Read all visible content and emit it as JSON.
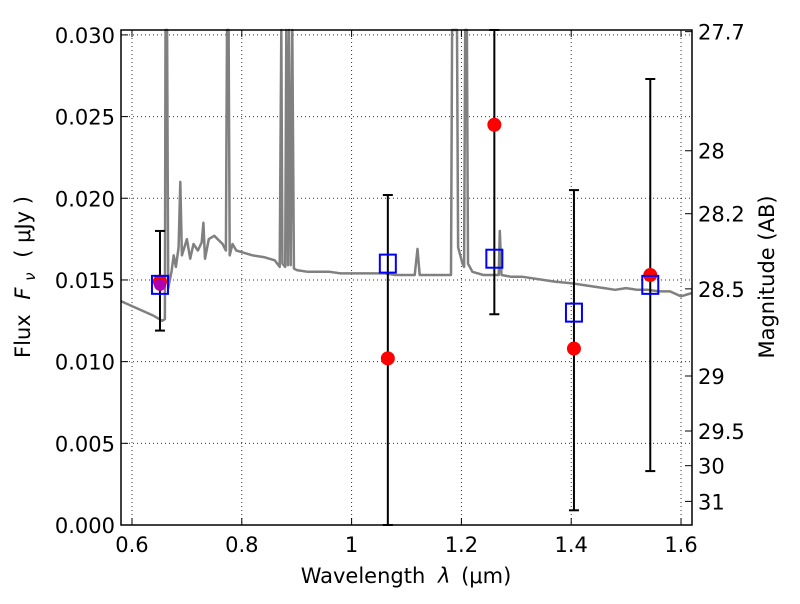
{
  "chart_data": {
    "type": "scatter",
    "xlabel_text": "Wavelength",
    "xlabel_symbol": "λ",
    "xlabel_unit": "(μm)",
    "ylabel_text": "Flux",
    "ylabel_symbol": "F",
    "ylabel_subscript": "ν",
    "ylabel_unit": "( μJy )",
    "y2label": "Magnitude (AB)",
    "xlim": [
      0.58,
      1.62
    ],
    "ylim": [
      0.0,
      0.0303
    ],
    "grid": true,
    "x_ticks": [
      {
        "value": 0.6,
        "label": "0.6"
      },
      {
        "value": 0.8,
        "label": "0.8"
      },
      {
        "value": 1.0,
        "label": "1"
      },
      {
        "value": 1.2,
        "label": "1.2"
      },
      {
        "value": 1.4,
        "label": "1.4"
      },
      {
        "value": 1.6,
        "label": "1.6"
      }
    ],
    "y_ticks": [
      {
        "value": 0.0,
        "label": "0.000"
      },
      {
        "value": 0.005,
        "label": "0.005"
      },
      {
        "value": 0.01,
        "label": "0.010"
      },
      {
        "value": 0.015,
        "label": "0.015"
      },
      {
        "value": 0.02,
        "label": "0.020"
      },
      {
        "value": 0.025,
        "label": "0.025"
      },
      {
        "value": 0.03,
        "label": "0.030"
      }
    ],
    "y2_ticks": [
      {
        "mag": 27.7,
        "label": "27.7"
      },
      {
        "mag": 28.0,
        "label": "28"
      },
      {
        "mag": 28.2,
        "label": "28.2"
      },
      {
        "mag": 28.5,
        "label": "28.5"
      },
      {
        "mag": 29.0,
        "label": "29"
      },
      {
        "mag": 29.5,
        "label": "29.5"
      },
      {
        "mag": 30.0,
        "label": "30"
      },
      {
        "mag": 31.0,
        "label": "31"
      }
    ],
    "series": [
      {
        "kind": "observed",
        "style": "red-circle",
        "color": "#ff0000",
        "points": [
          {
            "x": 0.651,
            "y": 0.0149,
            "yerr_low": 0.0119,
            "yerr_high": 0.018
          },
          {
            "x": 1.066,
            "y": 0.0102,
            "yerr_low": 0.0,
            "yerr_high": 0.0202
          },
          {
            "x": 1.26,
            "y": 0.0245,
            "yerr_low": 0.0129,
            "yerr_high": 0.0304
          },
          {
            "x": 1.405,
            "y": 0.0108,
            "yerr_low": 0.0009,
            "yerr_high": 0.0205
          },
          {
            "x": 1.544,
            "y": 0.0153,
            "yerr_low": 0.0033,
            "yerr_high": 0.0273
          }
        ]
      },
      {
        "kind": "model-photometry",
        "style": "blue-open-square",
        "color": "#0000ff",
        "points": [
          {
            "x": 0.651,
            "y": 0.0147
          },
          {
            "x": 1.066,
            "y": 0.016
          },
          {
            "x": 1.26,
            "y": 0.0163
          },
          {
            "x": 1.405,
            "y": 0.013
          },
          {
            "x": 1.544,
            "y": 0.0147
          }
        ]
      },
      {
        "kind": "model-spectrum",
        "style": "gray-line",
        "color": "#808080",
        "points": [
          [
            0.58,
            0.0137
          ],
          [
            0.6,
            0.0134
          ],
          [
            0.62,
            0.0131
          ],
          [
            0.64,
            0.0128
          ],
          [
            0.655,
            0.0125
          ],
          [
            0.66,
            0.0126
          ],
          [
            0.661,
            0.031
          ],
          [
            0.664,
            0.031
          ],
          [
            0.666,
            0.0145
          ],
          [
            0.672,
            0.0155
          ],
          [
            0.676,
            0.0165
          ],
          [
            0.68,
            0.0158
          ],
          [
            0.685,
            0.017
          ],
          [
            0.688,
            0.021
          ],
          [
            0.691,
            0.0165
          ],
          [
            0.7,
            0.0175
          ],
          [
            0.706,
            0.0163
          ],
          [
            0.712,
            0.0172
          ],
          [
            0.72,
            0.0168
          ],
          [
            0.727,
            0.0173
          ],
          [
            0.73,
            0.0185
          ],
          [
            0.733,
            0.0163
          ],
          [
            0.74,
            0.0175
          ],
          [
            0.75,
            0.0177
          ],
          [
            0.765,
            0.0172
          ],
          [
            0.771,
            0.0168
          ],
          [
            0.773,
            0.031
          ],
          [
            0.776,
            0.031
          ],
          [
            0.778,
            0.0165
          ],
          [
            0.783,
            0.0172
          ],
          [
            0.79,
            0.0168
          ],
          [
            0.8,
            0.0167
          ],
          [
            0.82,
            0.0165
          ],
          [
            0.84,
            0.0164
          ],
          [
            0.86,
            0.0162
          ],
          [
            0.869,
            0.0158
          ],
          [
            0.872,
            0.031
          ],
          [
            0.874,
            0.016
          ],
          [
            0.879,
            0.0158
          ],
          [
            0.881,
            0.031
          ],
          [
            0.884,
            0.0159
          ],
          [
            0.886,
            0.031
          ],
          [
            0.889,
            0.0159
          ],
          [
            0.892,
            0.031
          ],
          [
            0.895,
            0.0157
          ],
          [
            0.9,
            0.0156
          ],
          [
            0.92,
            0.0155
          ],
          [
            0.94,
            0.0155
          ],
          [
            0.96,
            0.0155
          ],
          [
            0.98,
            0.0154
          ],
          [
            1.0,
            0.0154
          ],
          [
            1.02,
            0.0154
          ],
          [
            1.04,
            0.0154
          ],
          [
            1.06,
            0.0154
          ],
          [
            1.08,
            0.0153
          ],
          [
            1.1,
            0.0153
          ],
          [
            1.115,
            0.0153
          ],
          [
            1.12,
            0.0169
          ],
          [
            1.124,
            0.0153
          ],
          [
            1.14,
            0.0153
          ],
          [
            1.16,
            0.0153
          ],
          [
            1.175,
            0.0153
          ],
          [
            1.181,
            0.0153
          ],
          [
            1.183,
            0.031
          ],
          [
            1.192,
            0.031
          ],
          [
            1.194,
            0.017
          ],
          [
            1.198,
            0.0165
          ],
          [
            1.202,
            0.016
          ],
          [
            1.205,
            0.0158
          ],
          [
            1.207,
            0.031
          ],
          [
            1.21,
            0.031
          ],
          [
            1.212,
            0.016
          ],
          [
            1.22,
            0.0155
          ],
          [
            1.24,
            0.0153
          ],
          [
            1.26,
            0.0153
          ],
          [
            1.268,
            0.0153
          ],
          [
            1.27,
            0.018
          ],
          [
            1.273,
            0.0153
          ],
          [
            1.29,
            0.0152
          ],
          [
            1.31,
            0.0152
          ],
          [
            1.33,
            0.0151
          ],
          [
            1.35,
            0.015
          ],
          [
            1.37,
            0.0149
          ],
          [
            1.4,
            0.0148
          ],
          [
            1.42,
            0.0147
          ],
          [
            1.44,
            0.0146
          ],
          [
            1.46,
            0.0145
          ],
          [
            1.48,
            0.0144
          ],
          [
            1.5,
            0.0145
          ],
          [
            1.52,
            0.0144
          ],
          [
            1.54,
            0.0144
          ],
          [
            1.56,
            0.0143
          ],
          [
            1.58,
            0.0143
          ],
          [
            1.6,
            0.014
          ],
          [
            1.62,
            0.0142
          ]
        ]
      }
    ]
  }
}
